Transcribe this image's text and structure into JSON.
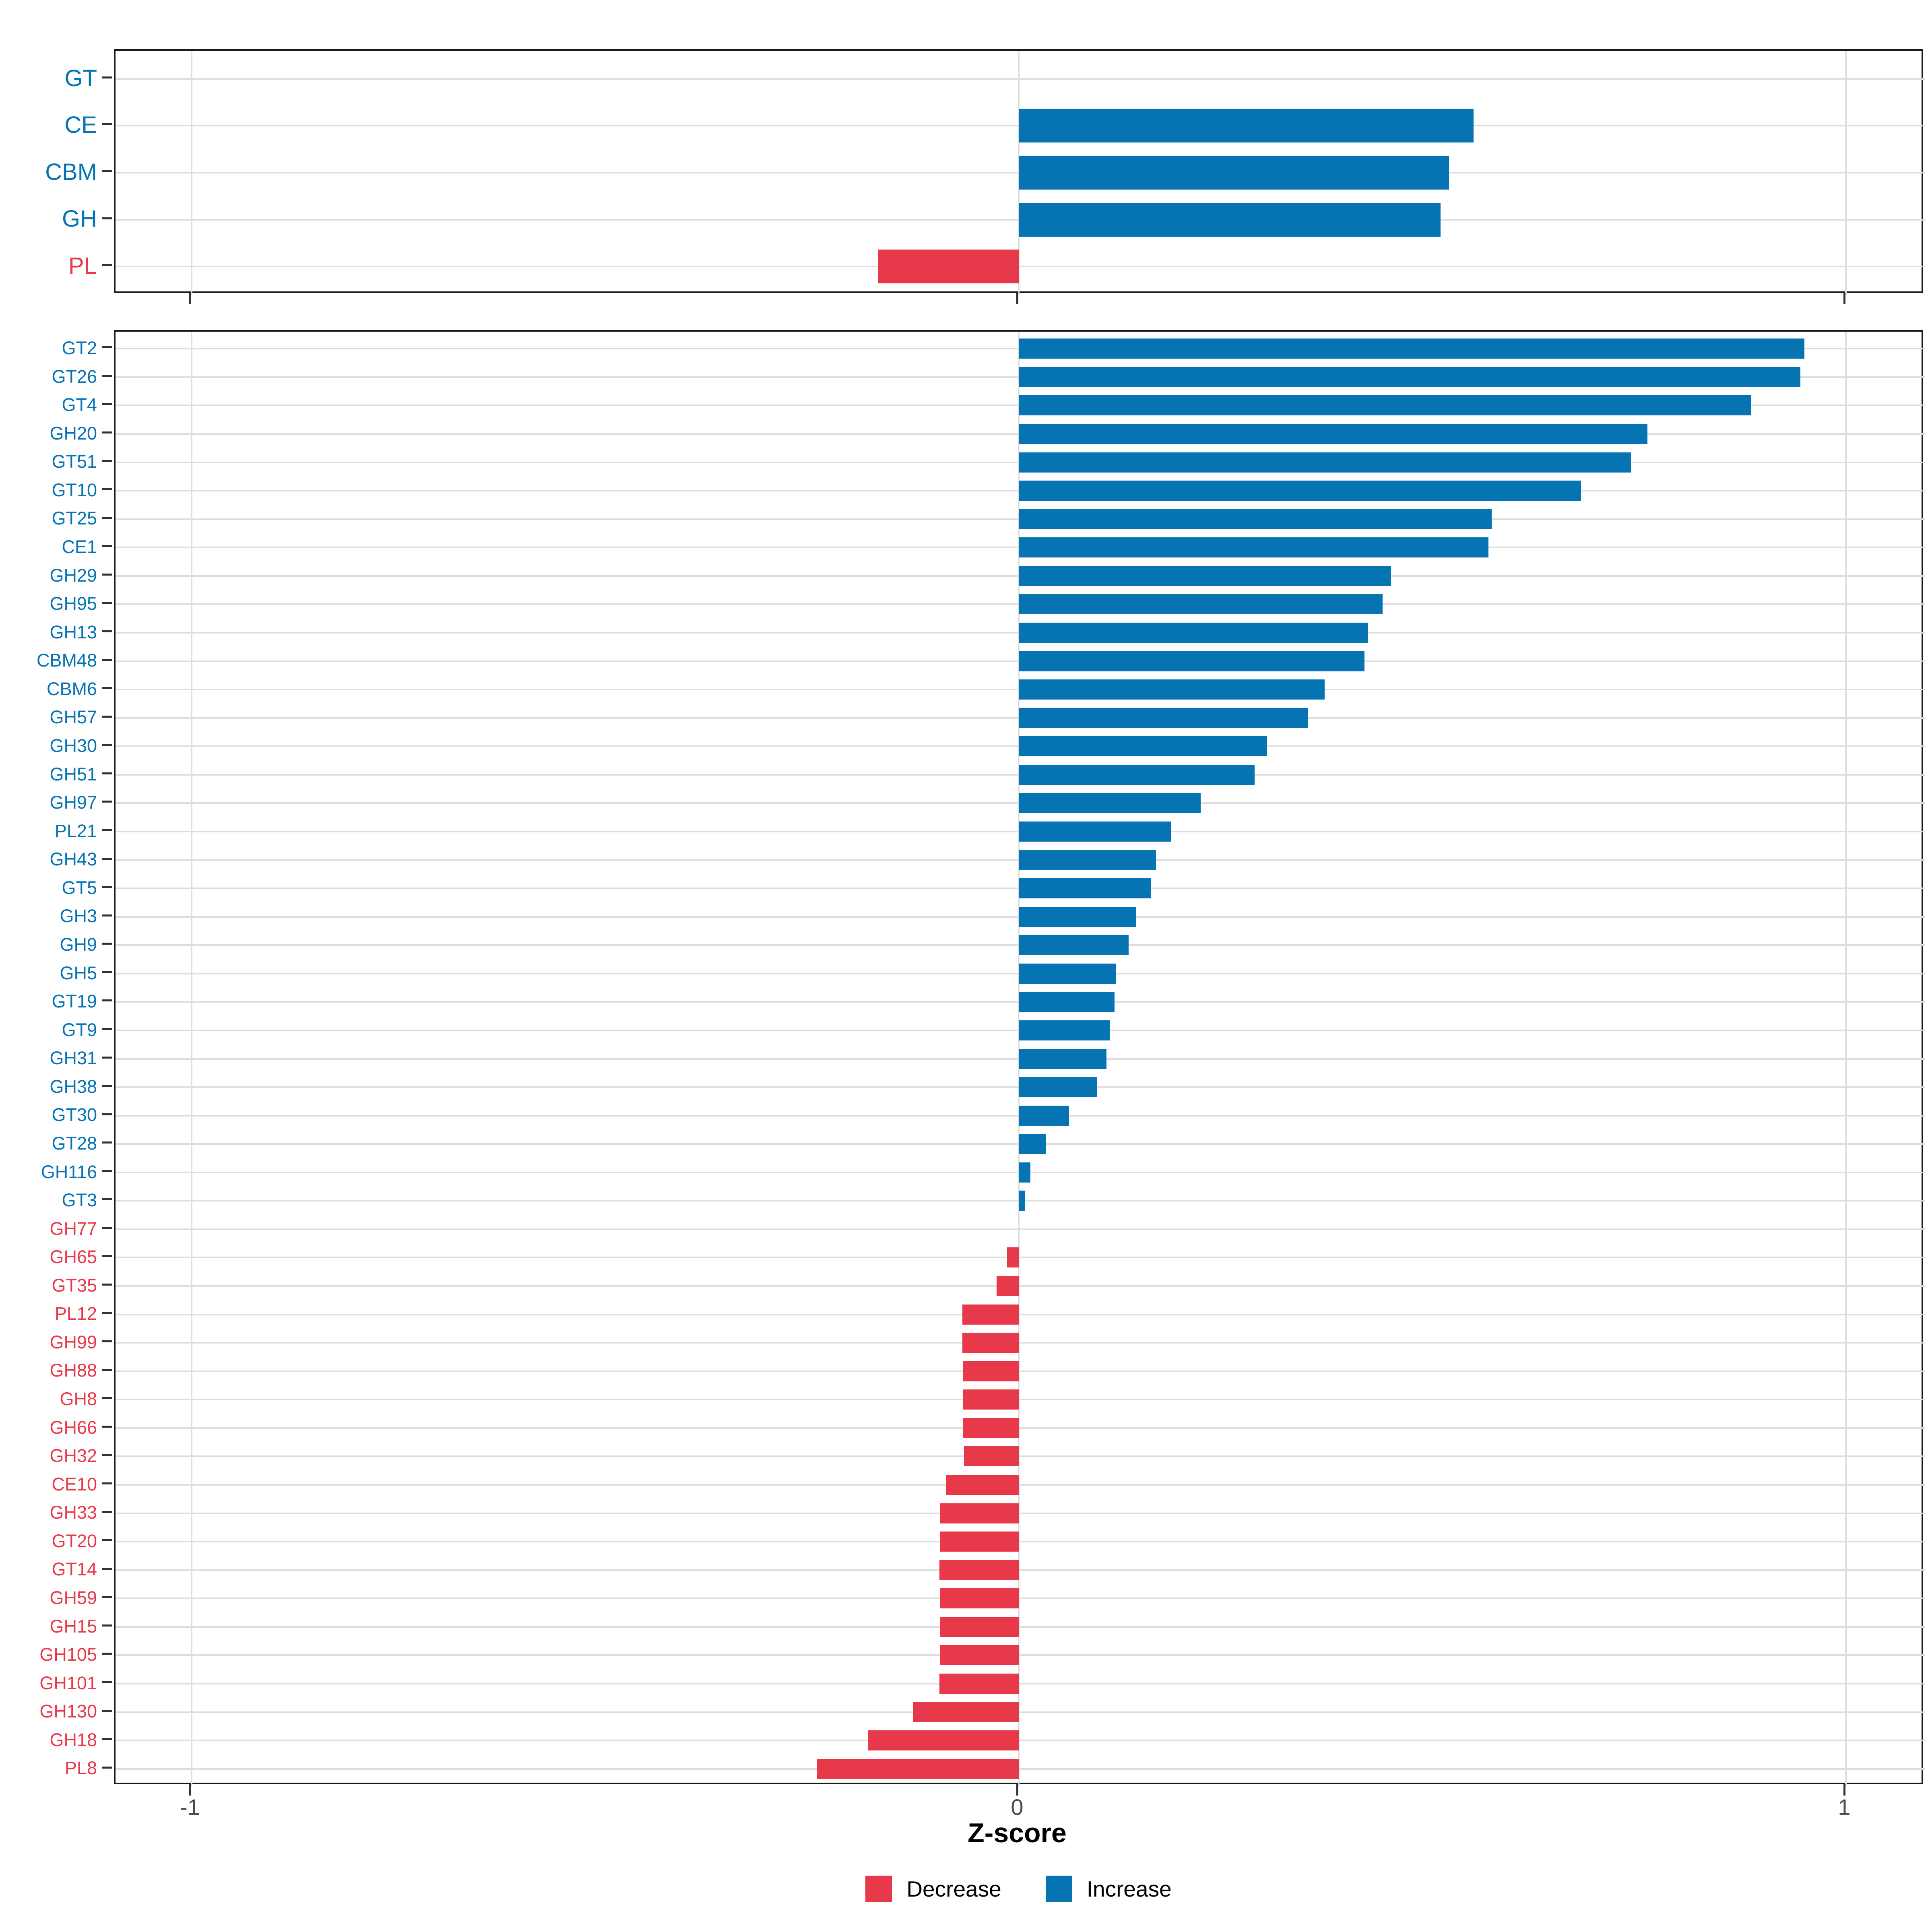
{
  "figure": {
    "background": "#ffffff",
    "x_axis": {
      "label": "Z-score",
      "ticks": [
        -1,
        0,
        1
      ],
      "tick_labels": [
        "-1",
        "0",
        "1"
      ],
      "domain_min": -1.092,
      "domain_max": 1.095,
      "grid": true
    },
    "legend": {
      "items": [
        {
          "label": "Decrease",
          "color": "#e8394a"
        },
        {
          "label": "Increase",
          "color": "#0673b3"
        }
      ]
    },
    "colors": {
      "increase": "#0673b3",
      "decrease": "#e8394a",
      "gridline": "#dedede",
      "panel_border": "#1a1a1a",
      "tick_mark": "#333333",
      "axis_text": "#4d4d4d",
      "title_text": "#000000"
    }
  },
  "chart_data": [
    {
      "type": "bar",
      "orientation": "horizontal",
      "panel": "cazyme-class",
      "title": "",
      "xlabel": "Z-score",
      "xlim": [
        -1.092,
        1.095
      ],
      "categories": [
        "GT",
        "CE",
        "CBM",
        "GH",
        "PL"
      ],
      "values": [
        0,
        0.55,
        0.52,
        0.51,
        -0.17
      ],
      "directions": [
        "increase",
        "increase",
        "increase",
        "increase",
        "decrease"
      ],
      "legend_position": "none"
    },
    {
      "type": "bar",
      "orientation": "horizontal",
      "panel": "cazyme-family",
      "title": "",
      "xlabel": "Z-score",
      "xlim": [
        -1.092,
        1.095
      ],
      "categories": [
        "GT2",
        "GT26",
        "GT4",
        "GH20",
        "GT51",
        "GT10",
        "GT25",
        "CE1",
        "GH29",
        "GH95",
        "GH13",
        "CBM48",
        "CBM6",
        "GH57",
        "GH30",
        "GH51",
        "GH97",
        "PL21",
        "GH43",
        "GT5",
        "GH3",
        "GH9",
        "GH5",
        "GT19",
        "GT9",
        "GH31",
        "GH38",
        "GT30",
        "GT28",
        "GH116",
        "GT3",
        "GH77",
        "GH65",
        "GT35",
        "PL12",
        "GH99",
        "GH88",
        "GH8",
        "GH66",
        "GH32",
        "CE10",
        "GH33",
        "GT20",
        "GT14",
        "GH59",
        "GH15",
        "GH105",
        "GH101",
        "GH130",
        "GH18",
        "PL8"
      ],
      "values": [
        0.95,
        0.945,
        0.885,
        0.76,
        0.74,
        0.68,
        0.572,
        0.568,
        0.45,
        0.44,
        0.422,
        0.418,
        0.37,
        0.35,
        0.3,
        0.285,
        0.22,
        0.184,
        0.166,
        0.16,
        0.142,
        0.133,
        0.118,
        0.116,
        0.11,
        0.106,
        0.095,
        0.061,
        0.033,
        0.014,
        0.008,
        0,
        -0.014,
        -0.027,
        -0.068,
        -0.068,
        -0.067,
        -0.067,
        -0.067,
        -0.066,
        -0.088,
        -0.095,
        -0.095,
        -0.096,
        -0.095,
        -0.095,
        -0.095,
        -0.096,
        -0.128,
        -0.182,
        -0.244
      ],
      "directions": [
        "increase",
        "increase",
        "increase",
        "increase",
        "increase",
        "increase",
        "increase",
        "increase",
        "increase",
        "increase",
        "increase",
        "increase",
        "increase",
        "increase",
        "increase",
        "increase",
        "increase",
        "increase",
        "increase",
        "increase",
        "increase",
        "increase",
        "increase",
        "increase",
        "increase",
        "increase",
        "increase",
        "increase",
        "increase",
        "increase",
        "increase",
        "decrease",
        "decrease",
        "decrease",
        "decrease",
        "decrease",
        "decrease",
        "decrease",
        "decrease",
        "decrease",
        "decrease",
        "decrease",
        "decrease",
        "decrease",
        "decrease",
        "decrease",
        "decrease",
        "decrease",
        "decrease",
        "decrease",
        "decrease"
      ],
      "legend_position": "bottom"
    }
  ]
}
